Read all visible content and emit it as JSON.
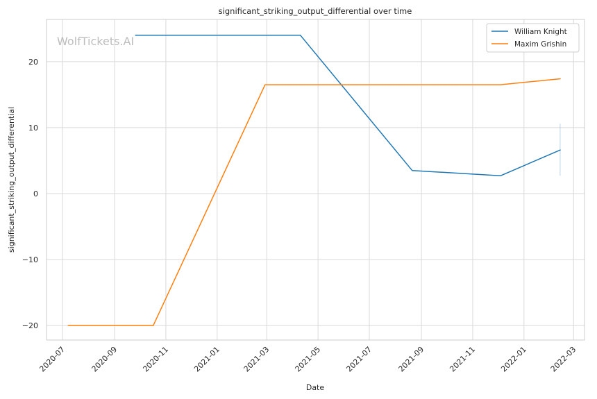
{
  "chart_data": {
    "type": "line",
    "title": "significant_striking_output_differential over time",
    "xlabel": "Date",
    "ylabel": "significant_striking_output_differential",
    "watermark": "WolfTickets.AI",
    "x_axis_type": "date",
    "xlim": [
      "2020-06-12",
      "2022-03-14"
    ],
    "ylim": [
      -22.2,
      26.4
    ],
    "x_ticks": [
      "2020-07-01",
      "2020-09-01",
      "2020-11-01",
      "2021-01-01",
      "2021-03-01",
      "2021-05-01",
      "2021-07-01",
      "2021-09-01",
      "2021-11-01",
      "2022-01-01",
      "2022-03-01"
    ],
    "x_tick_labels": [
      "2020-07",
      "2020-09",
      "2020-11",
      "2021-01",
      "2021-03",
      "2021-05",
      "2021-07",
      "2021-09",
      "2021-11",
      "2022-01",
      "2022-03"
    ],
    "y_ticks": [
      -20,
      -10,
      0,
      10,
      20
    ],
    "y_tick_labels": [
      "−20",
      "−10",
      "0",
      "10",
      "20"
    ],
    "grid": true,
    "legend_position": "top-right",
    "series": [
      {
        "name": "William Knight",
        "color": "#1f77b4",
        "points": [
          {
            "x": "2020-09-26",
            "y": 24
          },
          {
            "x": "2021-04-10",
            "y": 24
          },
          {
            "x": "2021-08-21",
            "y": 3.5
          },
          {
            "x": "2021-12-04",
            "y": 2.7
          },
          {
            "x": "2022-02-13",
            "y": 6.6
          }
        ],
        "error_band": {
          "x": "2022-02-13",
          "y_low": 2.7,
          "y_high": 10.6
        }
      },
      {
        "name": "Maxim Grishin",
        "color": "#ff7f0e",
        "points": [
          {
            "x": "2020-07-08",
            "y": -20
          },
          {
            "x": "2020-10-17",
            "y": -20
          },
          {
            "x": "2021-02-27",
            "y": 16.5
          },
          {
            "x": "2021-12-04",
            "y": 16.5
          },
          {
            "x": "2022-02-13",
            "y": 17.4
          }
        ]
      }
    ]
  }
}
